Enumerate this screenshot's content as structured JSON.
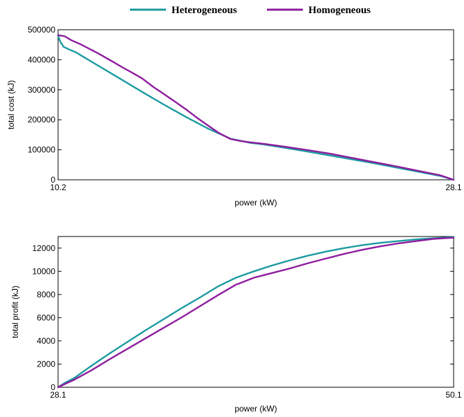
{
  "legend": [
    {
      "name": "Heterogeneous",
      "color": "#1a9aa0"
    },
    {
      "name": "Homogeneous",
      "color": "#8e1c9e"
    }
  ],
  "chart_data": [
    {
      "type": "line",
      "xlabel": "power (kW)",
      "ylabel": "total cost (kJ)",
      "xlim": [
        10.2,
        28.1
      ],
      "ylim": [
        0,
        500000
      ],
      "x_ticks": [
        10.2,
        28.1
      ],
      "x_tick_labels": [
        "10.2",
        "28.1"
      ],
      "y_ticks": [
        0,
        100000,
        200000,
        300000,
        400000,
        500000
      ],
      "y_tick_labels": [
        "0",
        "100000",
        "200000",
        "300000",
        "400000",
        "500000"
      ],
      "grid": false,
      "legend_position": "top-center",
      "series": [
        {
          "name": "Heterogeneous",
          "color": "#1a9aa0",
          "x": [
            10.2,
            10.3,
            10.45,
            10.65,
            11.0,
            12.0,
            13.0,
            14.0,
            15.0,
            16.0,
            17.0,
            18.0,
            18.9,
            19.5,
            20.5,
            21.5,
            22.5,
            23.5,
            24.5,
            25.5,
            26.5,
            27.5,
            28.1
          ],
          "values": [
            480000,
            460000,
            443000,
            436000,
            425000,
            381000,
            337000,
            293000,
            250000,
            209000,
            170000,
            137000,
            123000,
            118000,
            106000,
            94000,
            81000,
            68000,
            55000,
            41000,
            27000,
            13000,
            0
          ]
        },
        {
          "name": "Homogeneous",
          "color": "#8e1c9e",
          "x": [
            10.2,
            10.5,
            10.8,
            11.2,
            11.6,
            12.0,
            12.4,
            12.8,
            13.2,
            13.6,
            14.0,
            14.5,
            15.0,
            15.5,
            16.0,
            16.5,
            17.0,
            17.5,
            18.0,
            18.4,
            18.9,
            19.5,
            20.5,
            21.5,
            22.5,
            23.5,
            24.5,
            25.5,
            26.5,
            27.5,
            28.1
          ],
          "values": [
            482000,
            478000,
            465000,
            452000,
            437000,
            422000,
            405000,
            388000,
            371000,
            355000,
            338000,
            310000,
            285000,
            260000,
            234000,
            206000,
            180000,
            155000,
            136000,
            130000,
            125000,
            120000,
            110000,
            99000,
            87000,
            73000,
            59000,
            45000,
            30000,
            15000,
            0
          ]
        }
      ]
    },
    {
      "type": "line",
      "xlabel": "power (kW)",
      "ylabel": "total profit (kJ)",
      "xlim": [
        28.1,
        50.1
      ],
      "ylim": [
        0,
        13000
      ],
      "x_ticks": [
        28.1,
        50.1
      ],
      "x_tick_labels": [
        "28.1",
        "50.1"
      ],
      "y_ticks": [
        0,
        2000,
        4000,
        6000,
        8000,
        10000,
        12000
      ],
      "y_tick_labels": [
        "0",
        "2000",
        "4000",
        "6000",
        "8000",
        "10000",
        "12000"
      ],
      "grid": false,
      "series": [
        {
          "name": "Heterogeneous",
          "color": "#1a9aa0",
          "x": [
            28.1,
            28.5,
            29.0,
            30.0,
            31.0,
            32.0,
            33.0,
            34.0,
            35.0,
            36.0,
            37.0,
            38.0,
            39.0,
            40.0,
            41.0,
            42.0,
            43.0,
            44.0,
            45.0,
            46.0,
            47.0,
            48.0,
            49.0,
            50.1
          ],
          "values": [
            0,
            400,
            800,
            1900,
            2950,
            3950,
            4950,
            5900,
            6850,
            7750,
            8700,
            9450,
            10000,
            10500,
            10950,
            11350,
            11700,
            12000,
            12250,
            12450,
            12600,
            12750,
            12850,
            12950
          ]
        },
        {
          "name": "Homogeneous",
          "color": "#8e1c9e",
          "x": [
            28.1,
            28.5,
            29.0,
            30.0,
            31.0,
            32.0,
            33.0,
            34.0,
            35.0,
            36.0,
            37.0,
            38.0,
            39.0,
            40.0,
            41.0,
            42.0,
            43.0,
            44.0,
            45.0,
            46.0,
            47.0,
            48.0,
            49.0,
            50.1
          ],
          "values": [
            0,
            300,
            650,
            1500,
            2450,
            3350,
            4250,
            5150,
            6050,
            7000,
            7950,
            8850,
            9450,
            9850,
            10250,
            10700,
            11100,
            11500,
            11850,
            12150,
            12400,
            12600,
            12800,
            12900
          ]
        }
      ]
    }
  ]
}
